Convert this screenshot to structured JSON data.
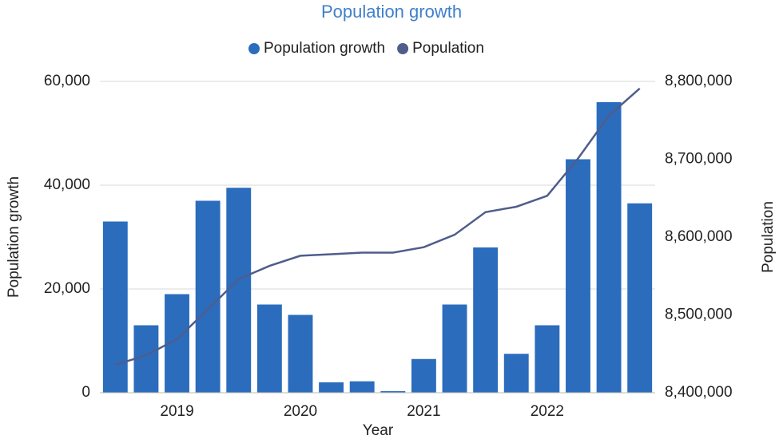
{
  "chart_data": {
    "type": "bar-line",
    "title": "Population growth",
    "x_label": "Year",
    "y_label": "Population growth",
    "y2_label": "Population",
    "categories": [
      null,
      null,
      "2019",
      null,
      null,
      null,
      "2020",
      null,
      null,
      null,
      "2021",
      null,
      null,
      null,
      "2022",
      null,
      null,
      null
    ],
    "series": [
      {
        "name": "Population growth",
        "type": "bar",
        "color": "#2b6cbd",
        "values": [
          33000,
          13000,
          19000,
          37000,
          39500,
          17000,
          15000,
          2000,
          2200,
          300,
          6500,
          17000,
          28000,
          7500,
          13000,
          45000,
          56000,
          36500
        ]
      },
      {
        "name": "Population",
        "type": "line",
        "axis": "y2",
        "color": "#4f5d8c",
        "values": [
          8436000,
          8448000,
          8469000,
          8507000,
          8546000,
          8563000,
          8576000,
          8578000,
          8580000,
          8580000,
          8587000,
          8603000,
          8632000,
          8639000,
          8653000,
          8701000,
          8756000,
          8791000
        ]
      }
    ],
    "ylim": [
      0,
      60000
    ],
    "yticks": [
      0,
      {
        "value": 20000,
        "label": "20,000"
      },
      {
        "value": 40000,
        "label": "40,000"
      },
      {
        "value": 60000,
        "label": "60,000"
      }
    ],
    "y2lim": [
      8400000,
      8800000
    ],
    "y2ticks": [
      {
        "value": 8400000,
        "label": "8,400,000"
      },
      {
        "value": 8500000,
        "label": "8,500,000"
      },
      {
        "value": 8600000,
        "label": "8,600,000"
      },
      {
        "value": 8700000,
        "label": "8,700,000"
      },
      {
        "value": 8800000,
        "label": "8,800,000"
      }
    ],
    "grid": true
  }
}
